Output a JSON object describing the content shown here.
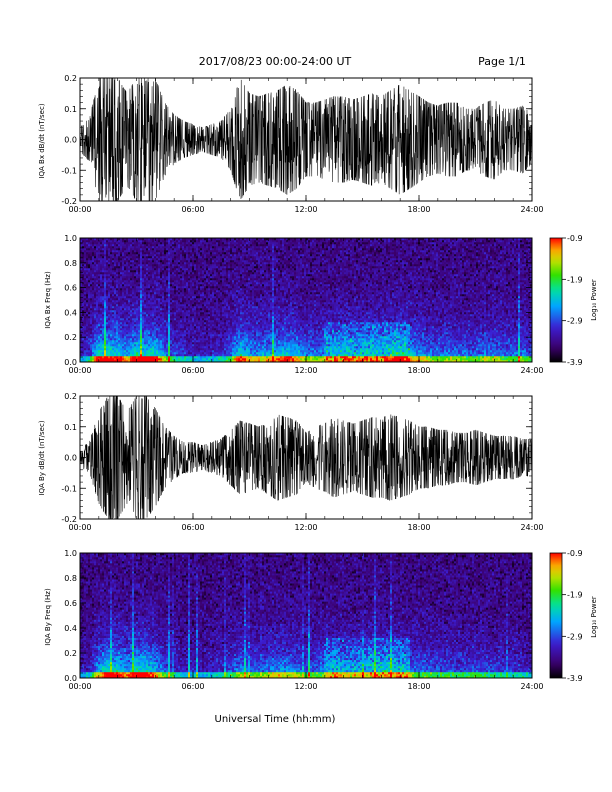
{
  "header": {
    "title": "2017/08/23  00:00-24:00 UT",
    "page": "Page 1/1"
  },
  "footer": {
    "xlabel": "Universal Time (hh:mm)"
  },
  "colorbar": {
    "label": "Log₁₀ Power",
    "ticks": [
      "-0.9",
      "-1.9",
      "-2.9",
      "-3.9"
    ],
    "colors": [
      "#000000",
      "#3c0073",
      "#3a1fd6",
      "#00a8ff",
      "#00e0a0",
      "#30e000",
      "#c8e000",
      "#ffa000",
      "#ff0000"
    ]
  },
  "chart_data": [
    {
      "type": "line",
      "ylabel": "IQA Bx dB/dt (nT/sec)",
      "xlim": [
        0,
        24
      ],
      "ylim": [
        -0.2,
        0.2
      ],
      "x_ticks": [
        "00:00",
        "06:00",
        "12:00",
        "18:00",
        "24:00"
      ],
      "y_ticks": [
        "0.2",
        "0.1",
        "0.0",
        "-0.1",
        "-0.2"
      ],
      "envelope": {
        "x": [
          0,
          0.5,
          1,
          1.5,
          2,
          2.5,
          3,
          3.5,
          4,
          4.5,
          5,
          5.5,
          6,
          6.5,
          7,
          7.5,
          8,
          8.5,
          9,
          9.5,
          10,
          10.5,
          11,
          11.5,
          12,
          12.5,
          13,
          13.5,
          14,
          14.5,
          15,
          15.5,
          16,
          16.5,
          17,
          17.5,
          18,
          18.5,
          19,
          19.5,
          20,
          20.5,
          21,
          21.5,
          22,
          22.5,
          23,
          23.5,
          24
        ],
        "y": [
          0.04,
          0.07,
          0.2,
          0.2,
          0.2,
          0.15,
          0.2,
          0.2,
          0.2,
          0.12,
          0.08,
          0.06,
          0.05,
          0.04,
          0.05,
          0.06,
          0.1,
          0.2,
          0.15,
          0.14,
          0.15,
          0.16,
          0.18,
          0.16,
          0.12,
          0.12,
          0.13,
          0.14,
          0.14,
          0.13,
          0.14,
          0.15,
          0.14,
          0.16,
          0.18,
          0.16,
          0.14,
          0.12,
          0.11,
          0.12,
          0.12,
          0.1,
          0.1,
          0.12,
          0.13,
          0.1,
          0.1,
          0.11,
          0.08
        ]
      }
    },
    {
      "type": "heatmap",
      "ylabel": "IQA Bx Freq (Hz)",
      "xlim": [
        0,
        24
      ],
      "ylim": [
        0,
        1
      ],
      "clim": [
        -3.9,
        -0.9
      ],
      "x_ticks": [
        "00:00",
        "06:00",
        "12:00",
        "18:00",
        "24:00"
      ],
      "y_ticks": [
        "1.0",
        "0.8",
        "0.6",
        "0.4",
        "0.2",
        "0.0"
      ]
    },
    {
      "type": "line",
      "ylabel": "IQA By dB/dt (nT/sec)",
      "xlim": [
        0,
        24
      ],
      "ylim": [
        -0.2,
        0.2
      ],
      "x_ticks": [
        "00:00",
        "06:00",
        "12:00",
        "18:00",
        "24:00"
      ],
      "y_ticks": [
        "0.2",
        "0.1",
        "0.0",
        "-0.1",
        "-0.2"
      ],
      "envelope": {
        "x": [
          0,
          0.5,
          1,
          1.5,
          2,
          2.5,
          3,
          3.5,
          4,
          4.5,
          5,
          5.5,
          6,
          6.5,
          7,
          7.5,
          8,
          8.5,
          9,
          9.5,
          10,
          10.5,
          11,
          11.5,
          12,
          12.5,
          13,
          13.5,
          14,
          14.5,
          15,
          15.5,
          16,
          16.5,
          17,
          17.5,
          18,
          18.5,
          19,
          19.5,
          20,
          20.5,
          21,
          21.5,
          22,
          22.5,
          23,
          23.5,
          24
        ],
        "y": [
          0.03,
          0.05,
          0.15,
          0.2,
          0.2,
          0.15,
          0.2,
          0.2,
          0.16,
          0.1,
          0.07,
          0.05,
          0.05,
          0.04,
          0.05,
          0.06,
          0.09,
          0.12,
          0.11,
          0.1,
          0.12,
          0.14,
          0.13,
          0.12,
          0.08,
          0.1,
          0.11,
          0.13,
          0.12,
          0.11,
          0.12,
          0.13,
          0.13,
          0.14,
          0.13,
          0.12,
          0.1,
          0.1,
          0.09,
          0.09,
          0.08,
          0.08,
          0.09,
          0.08,
          0.07,
          0.07,
          0.07,
          0.06,
          0.06
        ]
      }
    },
    {
      "type": "heatmap",
      "ylabel": "IQA By Freq (Hz)",
      "xlim": [
        0,
        24
      ],
      "ylim": [
        0,
        1
      ],
      "clim": [
        -3.9,
        -0.9
      ],
      "x_ticks": [
        "00:00",
        "06:00",
        "12:00",
        "18:00",
        "24:00"
      ],
      "y_ticks": [
        "1.0",
        "0.8",
        "0.6",
        "0.4",
        "0.2",
        "0.0"
      ]
    }
  ]
}
